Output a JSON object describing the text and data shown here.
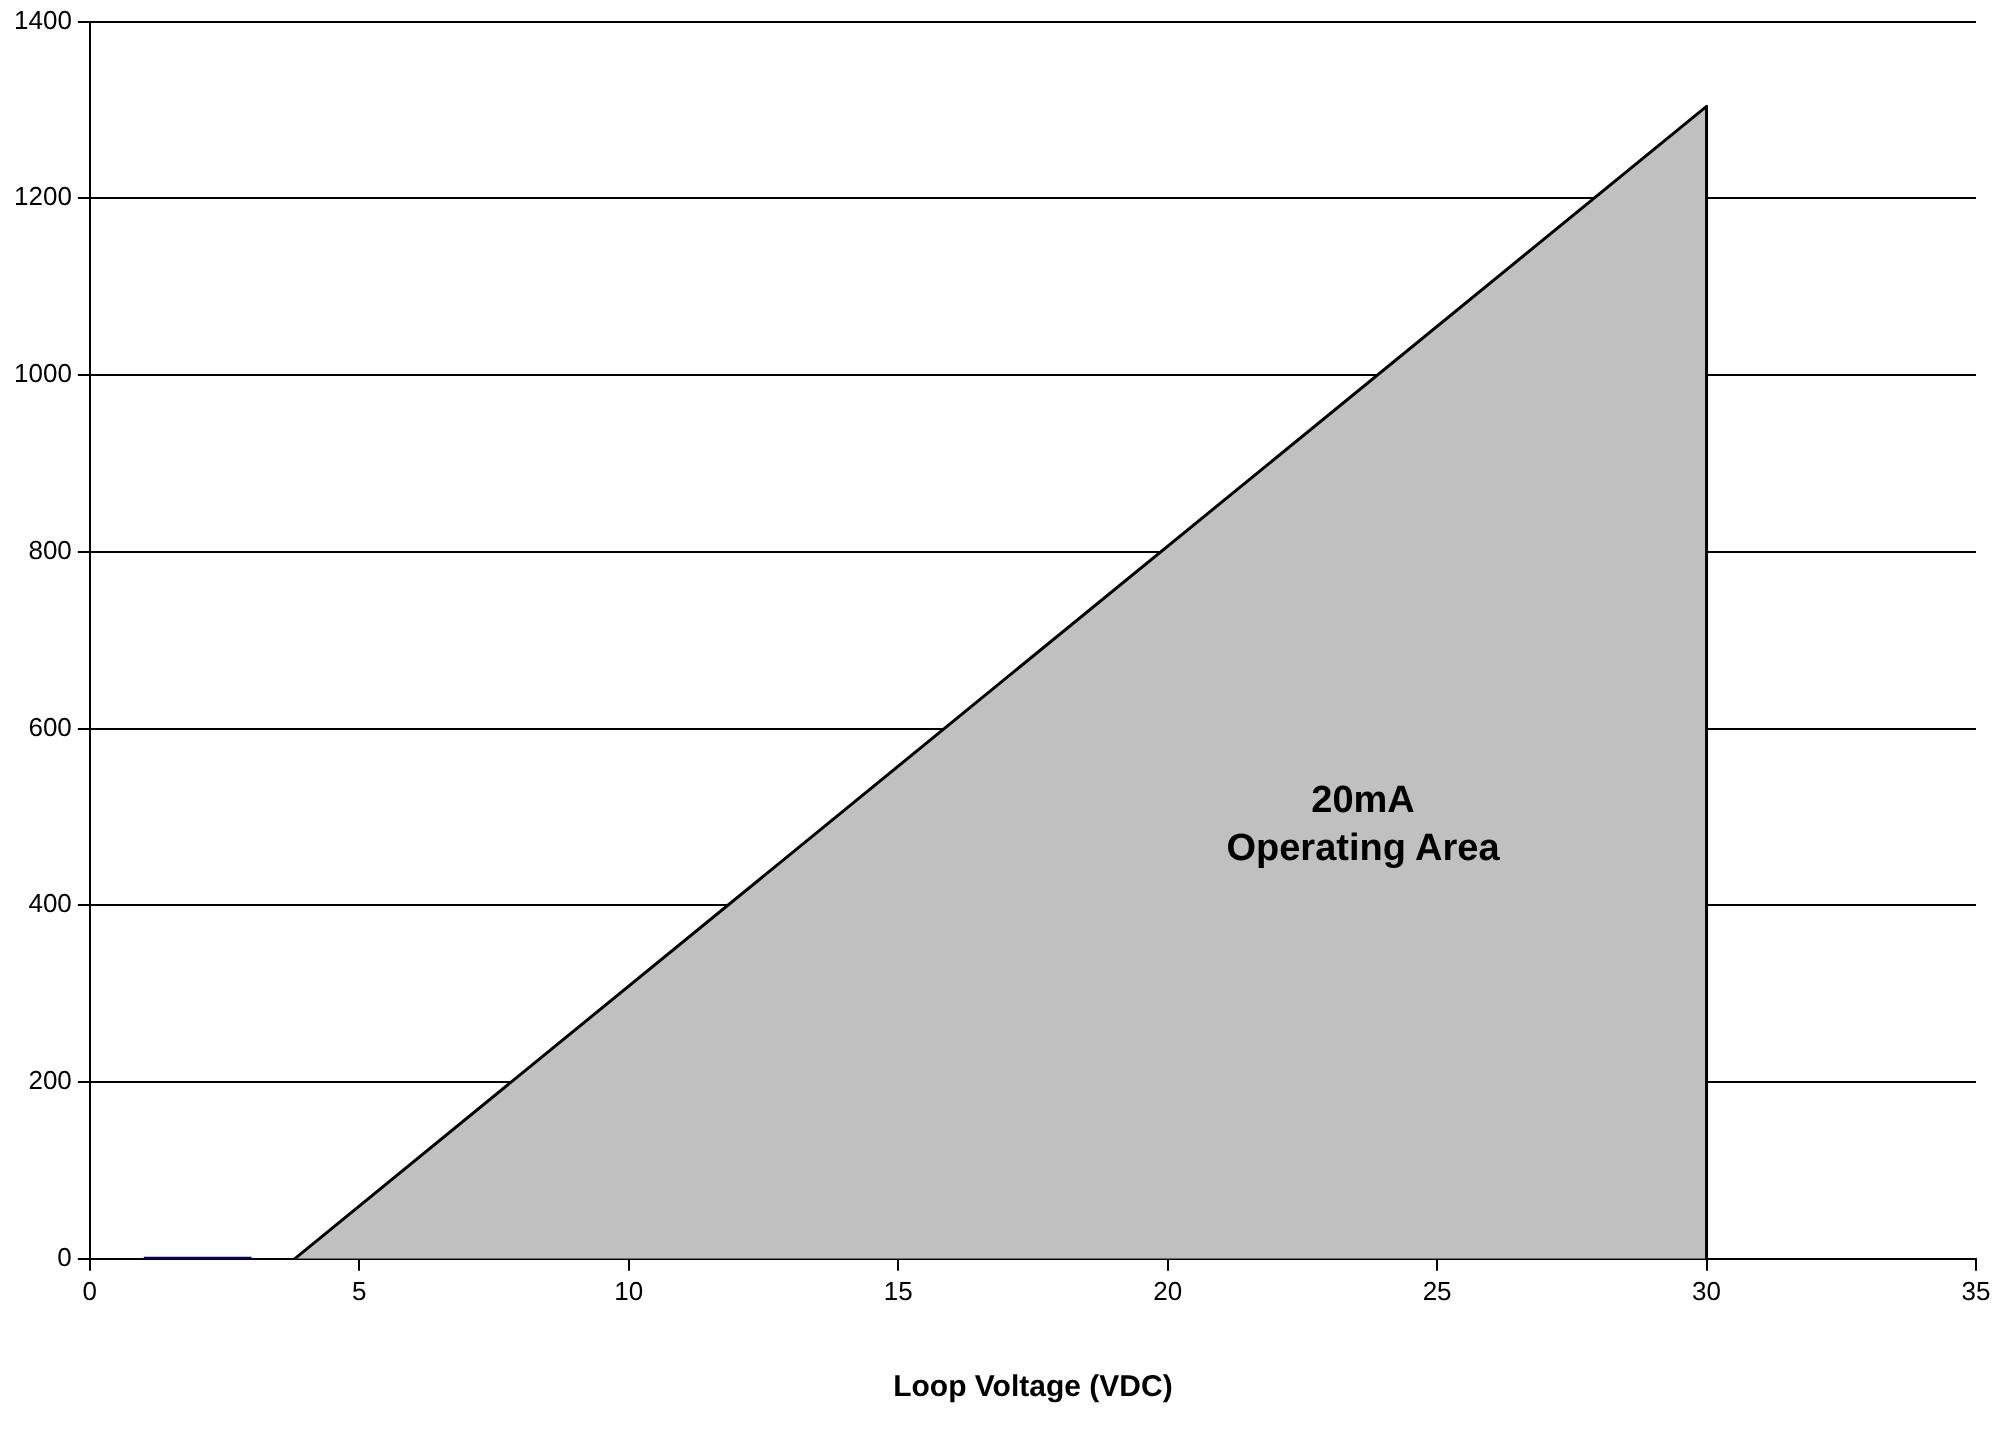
{
  "chart_data": {
    "type": "area",
    "xlabel": "Loop Voltage (VDC)",
    "annotations": [
      "20mA\nOperating Area"
    ],
    "series": [
      {
        "color": "#c0c0c0",
        "x": [
          3.8,
          30,
          30
        ],
        "values": [
          0,
          1304,
          0
        ]
      },
      {
        "type": "line",
        "color": "#000080",
        "x": [
          1,
          3
        ],
        "values": [
          0,
          0
        ]
      }
    ],
    "xlim": [
      0,
      35
    ],
    "xticks": [
      0,
      5,
      10,
      15,
      20,
      25,
      30,
      35
    ],
    "ylim": [
      0,
      1400
    ],
    "yticks": [
      0,
      200,
      400,
      600,
      800,
      1000,
      1200,
      1400
    ],
    "grid": "y",
    "legend": false,
    "marker": "none"
  }
}
